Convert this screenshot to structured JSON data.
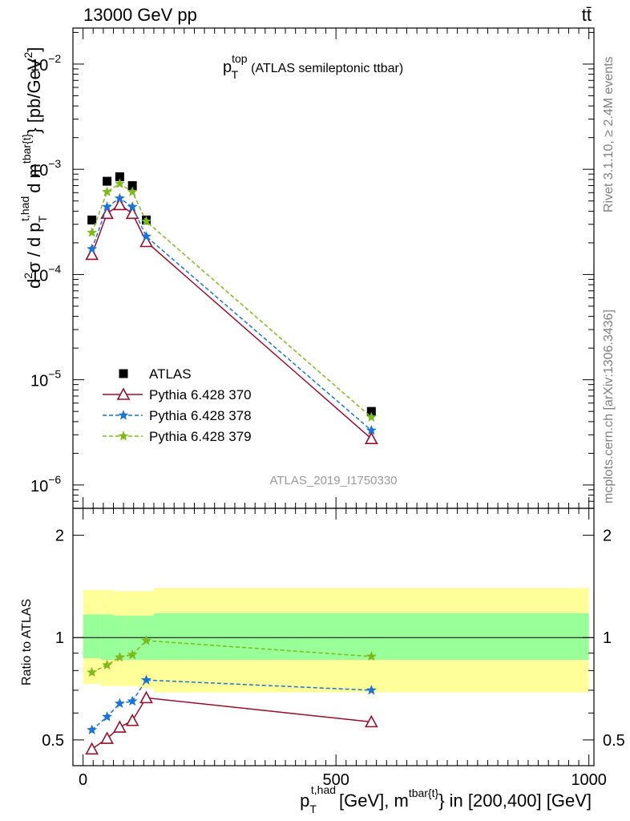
{
  "header": {
    "left": "13000 GeV pp",
    "right": "tt̄"
  },
  "side_text": {
    "rivet": "Rivet 3.1.10, ≥ 2.4M events",
    "mcplots": "mcplots.cern.ch [arXiv:1306.3436]"
  },
  "watermark": "ATLAS_2019_I1750330",
  "colors": {
    "atlas": "#000000",
    "p370": "#9a0d2a",
    "p378": "#1a73d6",
    "p379": "#7fba1b",
    "band_outer": "#ffff99",
    "band_inner": "#99ff99"
  },
  "chart_data": [
    {
      "panel": "main",
      "type": "line",
      "title": "p_T^top (ATLAS semileptonic ttbar)",
      "title_parts": {
        "p": "p",
        "sup": "top",
        "sub": "T",
        "rest": "(ATLAS semileptonic ttbar)"
      },
      "ylabel": "d²σ / d p_T^{t,had} d m^{tbar{t}} [pb/GeV²]",
      "ylabel_parts": {
        "a": "d",
        "a_sup": "2",
        "b": "σ / d p",
        "b_sub": "T",
        "b_sup": "t,had",
        "c": "d m",
        "c_sup": "tbar{t}",
        "d": "} [pb/GeV",
        "d_sup": "2",
        "e": "]"
      },
      "yscale": "log",
      "ylim": [
        6e-07,
        0.022
      ],
      "xlim": [
        -20,
        1010
      ],
      "yticks": [
        {
          "v": 1e-06,
          "base": "10",
          "exp": "−6"
        },
        {
          "v": 1e-05,
          "base": "10",
          "exp": "−5"
        },
        {
          "v": 0.0001,
          "base": "10",
          "exp": "−4"
        },
        {
          "v": 0.001,
          "base": "10",
          "exp": "−3"
        },
        {
          "v": 0.01,
          "base": "10",
          "exp": "−2"
        }
      ],
      "legend_position": "lower-left",
      "series": [
        {
          "name": "ATLAS",
          "marker": "square",
          "style": "none",
          "x": [
            17.5,
            47.5,
            72.5,
            97.5,
            125,
            570
          ],
          "y": [
            0.00033,
            0.00077,
            0.00085,
            0.0007,
            0.00033,
            5e-06
          ]
        },
        {
          "name": "Pythia 6.428 370",
          "marker": "triangle",
          "style": "solid",
          "x": [
            17.5,
            47.5,
            72.5,
            97.5,
            125,
            570
          ],
          "y": [
            0.000155,
            0.00038,
            0.00046,
            0.00038,
            0.000205,
            2.75e-06
          ]
        },
        {
          "name": "Pythia 6.428 378",
          "marker": "star",
          "style": "dashed",
          "x": [
            17.5,
            47.5,
            72.5,
            97.5,
            125,
            570
          ],
          "y": [
            0.000175,
            0.00044,
            0.00053,
            0.00044,
            0.00023,
            3.3e-06
          ]
        },
        {
          "name": "Pythia 6.428 379",
          "marker": "star",
          "style": "dashed",
          "x": [
            17.5,
            47.5,
            72.5,
            97.5,
            125,
            570
          ],
          "y": [
            0.00025,
            0.00061,
            0.00073,
            0.00061,
            0.00032,
            4.4e-06
          ]
        }
      ]
    },
    {
      "panel": "ratio",
      "type": "line",
      "ylabel": "Ratio to ATLAS",
      "xlabel": "p_T^{t,had} [GeV], m^{tbar{t}} in [200,400] [GeV]",
      "xlabel_parts": {
        "a": "p",
        "a_sub": "T",
        "a_sup": "t,had",
        "b": "[GeV], m",
        "b_sup": "tbar{t}",
        "c": "} in [200,400] [GeV]"
      },
      "yscale": "log",
      "ylim": [
        0.42,
        2.4
      ],
      "xlim": [
        -20,
        1010
      ],
      "xticks": [
        0,
        500,
        1000
      ],
      "yticks": [
        0.5,
        1,
        2
      ],
      "reference": 1,
      "bands": {
        "edges": [
          0,
          35,
          60,
          85,
          110,
          140,
          1000
        ],
        "outer_lo": [
          0.73,
          0.72,
          0.72,
          0.72,
          0.71,
          0.69
        ],
        "outer_hi": [
          1.38,
          1.38,
          1.37,
          1.37,
          1.37,
          1.4
        ],
        "inner_lo": [
          0.87,
          0.86,
          0.86,
          0.86,
          0.86,
          0.86
        ],
        "inner_hi": [
          1.17,
          1.17,
          1.16,
          1.16,
          1.16,
          1.18
        ]
      },
      "series": [
        {
          "name": "Pythia 6.428 370",
          "marker": "triangle",
          "style": "solid",
          "x": [
            17.5,
            47.5,
            72.5,
            97.5,
            125,
            570
          ],
          "y": [
            0.47,
            0.505,
            0.545,
            0.57,
            0.665,
            0.565
          ]
        },
        {
          "name": "Pythia 6.428 378",
          "marker": "star",
          "style": "dashed",
          "x": [
            17.5,
            47.5,
            72.5,
            97.5,
            125,
            570
          ],
          "y": [
            0.535,
            0.585,
            0.64,
            0.65,
            0.75,
            0.7
          ]
        },
        {
          "name": "Pythia 6.428 379",
          "marker": "star",
          "style": "dashed",
          "x": [
            17.5,
            47.5,
            72.5,
            97.5,
            125,
            570
          ],
          "y": [
            0.79,
            0.83,
            0.875,
            0.89,
            0.98,
            0.88
          ]
        }
      ]
    }
  ]
}
